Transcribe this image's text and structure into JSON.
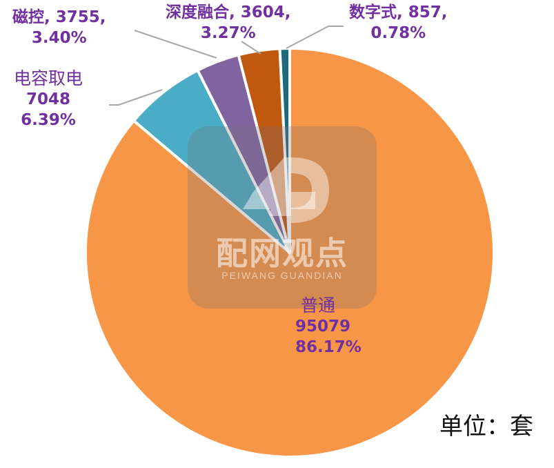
{
  "chart_data": {
    "type": "pie",
    "title": "",
    "unit_label": "单位：套",
    "slices": [
      {
        "name": "普通",
        "value": 95079,
        "percent": "86.17%",
        "color": "#f79646"
      },
      {
        "name": "电容取电",
        "value": 7048,
        "percent": "6.39%",
        "color": "#4bacc6"
      },
      {
        "name": "磁控",
        "value": 3755,
        "percent": "3.40%",
        "color": "#8064a2"
      },
      {
        "name": "深度融合",
        "value": 3604,
        "percent": "3.27%",
        "color": "#c0580e"
      },
      {
        "name": "数字式",
        "value": 857,
        "percent": "0.78%",
        "color": "#1f6a7a"
      }
    ]
  },
  "labels": {
    "putong": {
      "line1": "普通",
      "line2": "95079",
      "line3": "86.17%"
    },
    "dianrong": {
      "line1": "电容取电",
      "line2": "7048",
      "line3": "6.39%"
    },
    "cikong": {
      "line1": "磁控, 3755,",
      "line2": "3.40%"
    },
    "shendu": {
      "line1": "深度融合, 3604,",
      "line2": "3.27%"
    },
    "shuzi": {
      "line1": "数字式, 857,",
      "line2": "0.78%"
    }
  },
  "watermark": {
    "title": "配网观点",
    "subtitle": "PEIWANG GUANDIAN"
  },
  "colors": {
    "label_text": "#7030a0",
    "leader_line": "#a6a6a6"
  }
}
